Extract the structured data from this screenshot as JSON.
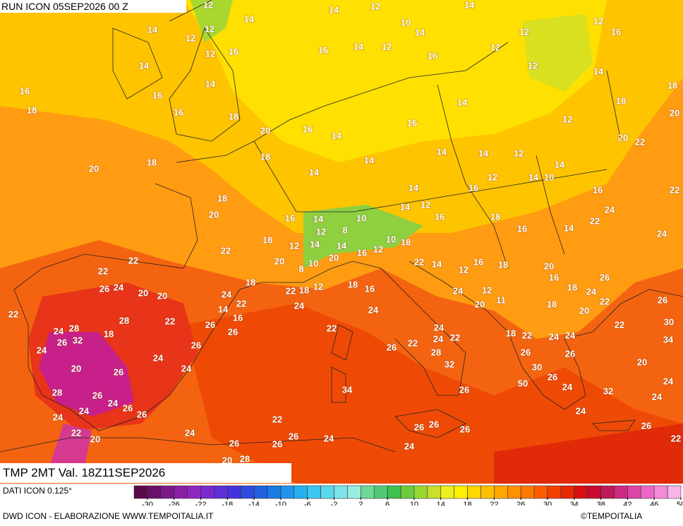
{
  "header": {
    "run": "RUN ICON 05SEP2026 00 Z",
    "validity": "TMP 2MT Val. 18Z11SEP2026"
  },
  "footer": {
    "source": "DATI ICON 0.125°",
    "credit": "DWD ICON - ELABORAZIONE WWW.TEMPOITALIA.IT",
    "copyright": "©TEMPOITALIA"
  },
  "colorbar": {
    "range": [
      -32,
      50
    ],
    "ticks": [
      -30,
      -26,
      -22,
      -18,
      -14,
      -10,
      -6,
      -2,
      2,
      6,
      10,
      14,
      18,
      22,
      26,
      30,
      34,
      38,
      42,
      46,
      50
    ],
    "colors": [
      "#5a0a4b",
      "#6a0f6a",
      "#7a1a8a",
      "#8a1fa6",
      "#8e27c0",
      "#7a2ad0",
      "#5f2ed8",
      "#4433dd",
      "#2e4ae0",
      "#2060e0",
      "#1a7ae6",
      "#1e95ea",
      "#25b0ee",
      "#3ac8f0",
      "#5ad8ee",
      "#7ee4e8",
      "#9aece0",
      "#6ed898",
      "#4ecb74",
      "#40c050",
      "#6ccc3c",
      "#9ad634",
      "#c8e02c",
      "#eef020",
      "#fff000",
      "#ffd800",
      "#ffc000",
      "#ffa800",
      "#ff9000",
      "#ff7800",
      "#ff5c00",
      "#f44000",
      "#e82800",
      "#d81010",
      "#c80a30",
      "#c01858",
      "#cc2a80",
      "#dc44a8",
      "#ec66c8",
      "#f48ad8",
      "#fab4e8"
    ]
  },
  "map_labels": [
    12,
    14,
    12,
    14,
    14,
    10,
    14,
    12,
    12,
    16,
    14,
    12,
    12,
    16,
    14,
    12,
    16,
    12,
    12,
    16,
    14,
    12,
    14,
    14,
    16,
    16,
    18,
    18,
    14,
    18,
    16,
    18,
    16,
    12,
    20,
    20,
    16,
    14,
    20,
    22,
    14,
    14,
    12,
    18,
    14,
    18,
    20,
    14,
    14,
    12,
    14,
    10,
    14,
    16,
    16,
    22,
    18,
    14,
    12,
    24,
    20,
    16,
    14,
    10,
    16,
    18,
    22,
    12,
    8,
    16,
    14,
    24,
    18,
    12,
    14,
    14,
    10,
    18,
    16,
    12,
    22,
    22,
    20,
    20,
    8,
    10,
    22,
    14,
    12,
    16,
    18,
    20,
    22,
    16,
    26,
    18,
    18,
    16,
    18,
    26,
    24,
    20,
    20,
    22,
    18,
    12,
    24,
    12,
    24,
    24,
    22,
    24,
    11,
    20,
    18,
    22,
    20,
    26,
    14,
    22,
    16,
    28,
    22,
    26,
    24,
    22,
    30,
    28,
    24,
    26,
    22,
    24,
    22,
    18,
    22,
    24,
    24,
    34,
    32,
    26,
    18,
    24,
    26,
    24,
    22,
    26,
    28,
    26,
    24,
    26,
    20,
    24,
    32,
    30,
    20,
    26,
    26,
    50,
    24,
    24,
    34,
    28,
    26,
    24,
    26,
    26,
    32,
    24,
    24,
    24,
    26,
    24,
    22,
    26,
    26,
    26,
    26,
    22,
    24,
    26,
    20,
    24,
    26,
    26,
    24,
    22,
    20,
    28
  ]
}
